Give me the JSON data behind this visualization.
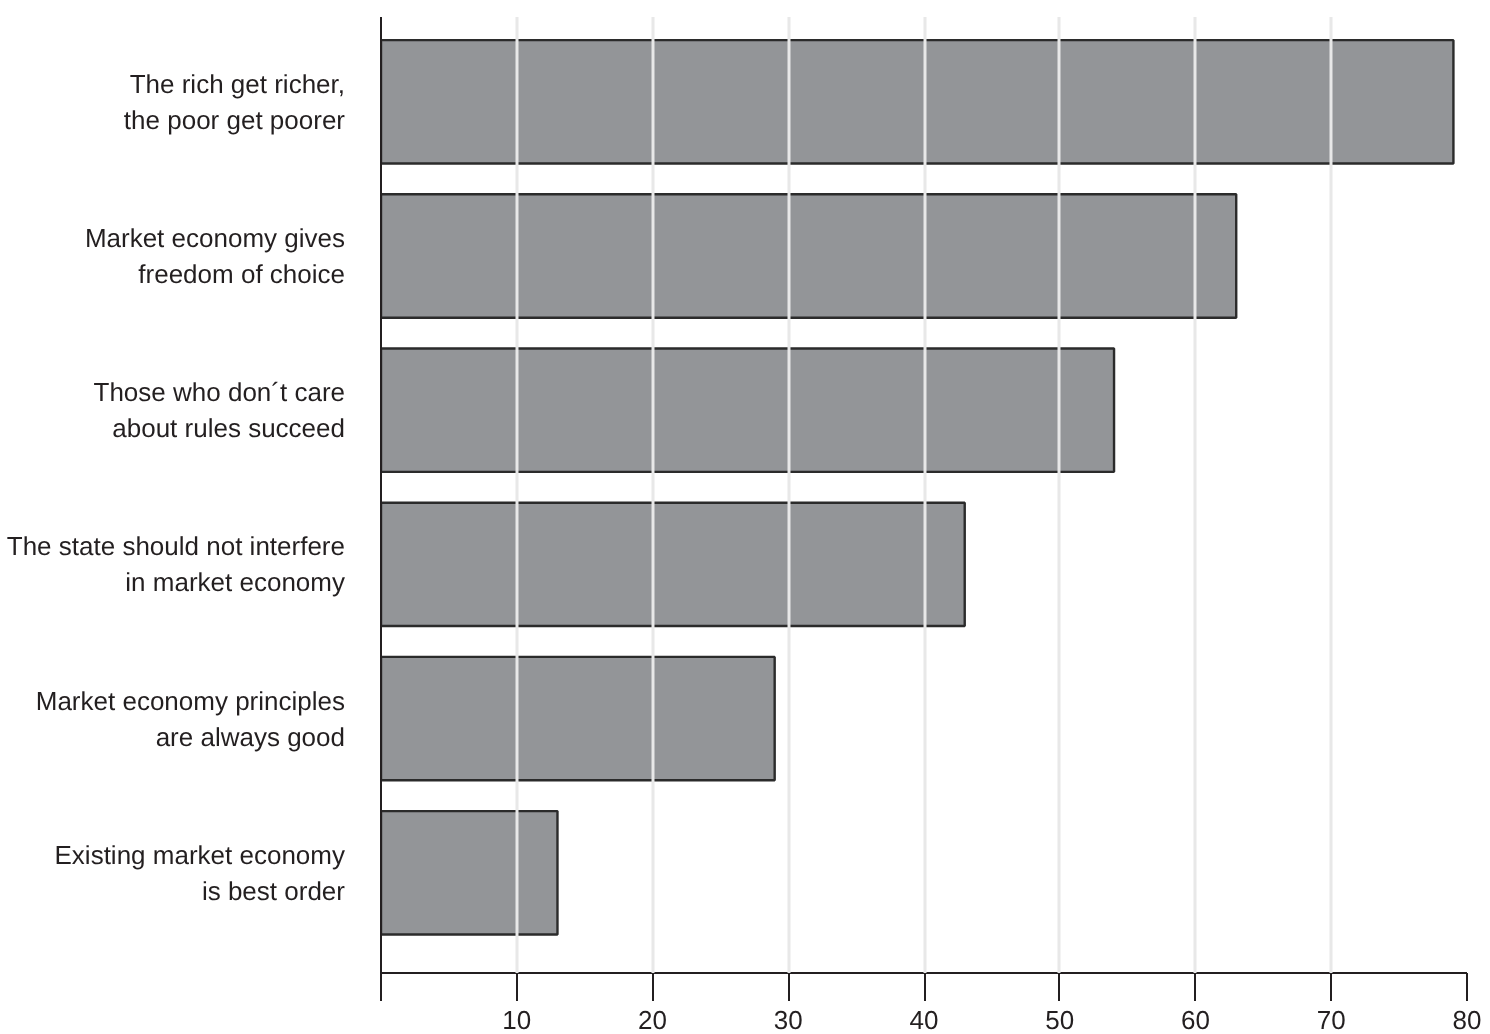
{
  "chart_data": {
    "type": "bar",
    "orientation": "horizontal",
    "categories": [
      "The rich get richer,\nthe poor get poorer",
      "Market economy gives\nfreedom of choice",
      "Those who don´t care\nabout rules succeed",
      "The state should not interfere\nin market economy",
      "Market economy principles\nare always good",
      "Existing market economy\nis best order"
    ],
    "values": [
      79,
      63,
      54,
      43,
      29,
      13
    ],
    "color": "#939598",
    "xlim": [
      0,
      80
    ],
    "xticks": [
      {
        "value": 0,
        "label": null
      },
      10,
      20,
      30,
      40,
      50,
      60,
      70,
      80
    ],
    "grid": "x"
  }
}
